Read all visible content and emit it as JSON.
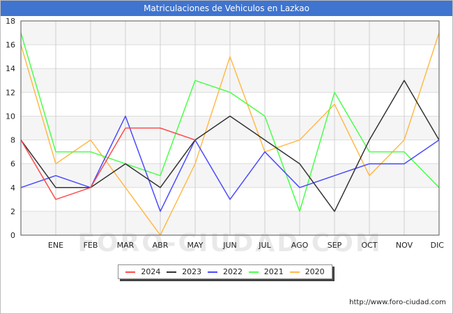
{
  "title": "Matriculaciones de Vehiculos en Lazkao",
  "source": "http://www.foro-ciudad.com",
  "watermark": "FORO-CIUDAD.COM",
  "chart_data": {
    "type": "line",
    "title": "Matriculaciones de Vehiculos en Lazkao",
    "categories": [
      "",
      "ENE",
      "FEB",
      "MAR",
      "ABR",
      "MAY",
      "JUN",
      "JUL",
      "AGO",
      "SEP",
      "OCT",
      "NOV",
      "DIC"
    ],
    "ylim": [
      0,
      18
    ],
    "yticks": [
      0,
      2,
      4,
      6,
      8,
      10,
      12,
      14,
      16,
      18
    ],
    "grid": true,
    "legend_position": "bottom",
    "series": [
      {
        "name": "2024",
        "color": "#ff4a4a",
        "values": [
          8,
          3,
          4,
          9,
          9,
          8,
          null,
          null,
          null,
          null,
          null,
          null,
          null
        ]
      },
      {
        "name": "2023",
        "color": "#333333",
        "values": [
          8,
          4,
          4,
          6,
          4,
          8,
          10,
          8,
          6,
          2,
          8,
          13,
          8
        ]
      },
      {
        "name": "2022",
        "color": "#4a4aff",
        "values": [
          4,
          5,
          4,
          10,
          2,
          8,
          3,
          7,
          4,
          5,
          6,
          6,
          8
        ]
      },
      {
        "name": "2021",
        "color": "#4aff4a",
        "values": [
          17,
          7,
          7,
          6,
          5,
          13,
          12,
          10,
          2,
          12,
          7,
          7,
          4
        ]
      },
      {
        "name": "2020",
        "color": "#ffba4a",
        "values": [
          16,
          6,
          8,
          4,
          0,
          6,
          15,
          7,
          8,
          11,
          5,
          8,
          17
        ]
      }
    ]
  }
}
